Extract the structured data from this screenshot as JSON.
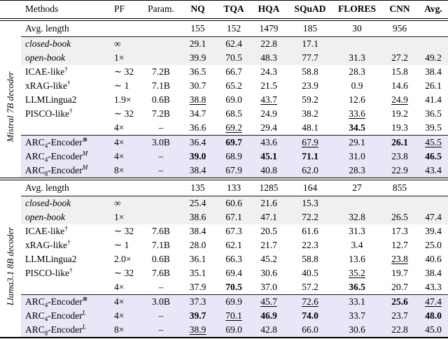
{
  "table": {
    "colors": {
      "gray_band": "#f0f0f0",
      "lavender_band": "#e7e7f7",
      "rule": "#000000"
    },
    "columns": [
      {
        "label": "Methods",
        "bold": false
      },
      {
        "label": "PF",
        "bold": false
      },
      {
        "label": "Param.",
        "bold": false
      },
      {
        "label": "NQ",
        "bold": true
      },
      {
        "label": "TQA",
        "bold": true
      },
      {
        "label": "HQA",
        "bold": true
      },
      {
        "label": "SQuAD",
        "bold": true
      },
      {
        "label": "FLORES",
        "bold": true
      },
      {
        "label": "CNN",
        "bold": true
      },
      {
        "label": "Avg.",
        "bold": true
      }
    ],
    "sections": [
      {
        "side_label": "Mistral 7B decoder",
        "avg_length_label": "Avg. length",
        "avg_length": [
          "155",
          "152",
          "1479",
          "185",
          "30",
          "956"
        ],
        "groups": [
          {
            "band": "gray_band",
            "rows": [
              {
                "method": {
                  "parts": [
                    {
                      "t": "closed-book",
                      "i": true
                    }
                  ]
                },
                "pf": "∞",
                "param": "",
                "cells": [
                  "29.1",
                  "62.4",
                  "22.8",
                  "17.1",
                  "",
                  "",
                  ""
                ]
              },
              {
                "method": {
                  "parts": [
                    {
                      "t": "open-book",
                      "i": true
                    }
                  ]
                },
                "pf": "1×",
                "param": "",
                "cells": [
                  "39.9",
                  "70.5",
                  "48.3",
                  "77.7",
                  "31.3",
                  "27.2",
                  "49.2"
                ]
              }
            ]
          },
          {
            "band": null,
            "rows": [
              {
                "method": {
                  "parts": [
                    {
                      "t": "ICAE-like"
                    },
                    {
                      "t": "†",
                      "sup": true
                    }
                  ]
                },
                "pf": "∼ 32",
                "param": "7.2B",
                "cells": [
                  "36.5",
                  "66.7",
                  "24.3",
                  "58.8",
                  "28.3",
                  "15.8",
                  "38.4"
                ]
              },
              {
                "method": {
                  "parts": [
                    {
                      "t": "xRAG-like"
                    },
                    {
                      "t": "†",
                      "sup": true
                    }
                  ]
                },
                "pf": "∼ 1",
                "param": "7.1B",
                "cells": [
                  "30.7",
                  "65.2",
                  "21.5",
                  "23.9",
                  "0.9",
                  "14.6",
                  "26.1"
                ]
              },
              {
                "method": {
                  "parts": [
                    {
                      "t": "LLMLingua2"
                    }
                  ]
                },
                "pf": "1.9×",
                "param": "0.6B",
                "cells": [
                  {
                    "t": "38.8",
                    "u": true
                  },
                  "69.0",
                  {
                    "t": "43.7",
                    "u": true
                  },
                  "59.2",
                  "12.6",
                  {
                    "t": "24.9",
                    "u": true
                  },
                  "41.4"
                ]
              },
              {
                "method": {
                  "parts": [
                    {
                      "t": "PISCO-like"
                    },
                    {
                      "t": "†",
                      "sup": true
                    }
                  ]
                },
                "pf": "∼ 32",
                "param": "7.2B",
                "cells": [
                  "34.7",
                  "68.5",
                  "24.9",
                  "38.2",
                  {
                    "t": "33.6",
                    "u": true
                  },
                  "19.2",
                  "36.5"
                ]
              },
              {
                "method": {
                  "parts": []
                },
                "pf": "4×",
                "param": "–",
                "cells": [
                  "36.6",
                  {
                    "t": "69.2",
                    "u": true
                  },
                  "29.4",
                  "48.1",
                  {
                    "t": "34.5",
                    "b": true
                  },
                  "19.3",
                  "39.5"
                ]
              }
            ]
          },
          {
            "band": "lavender_band",
            "rule_above": true,
            "rows": [
              {
                "method": {
                  "parts": [
                    {
                      "t": "ARC"
                    },
                    {
                      "t": "4",
                      "sub": true
                    },
                    {
                      "t": "-Encoder"
                    },
                    {
                      "t": "⊗",
                      "sup": true
                    }
                  ]
                },
                "pf": "4×",
                "param": "3.0B",
                "cells": [
                  "36.4",
                  {
                    "t": "69.7",
                    "b": true
                  },
                  "43.6",
                  {
                    "t": "67.9",
                    "u": true
                  },
                  "29.1",
                  {
                    "t": "26.1",
                    "b": true
                  },
                  {
                    "t": "45.5",
                    "u": true
                  }
                ]
              },
              {
                "method": {
                  "parts": [
                    {
                      "t": "ARC"
                    },
                    {
                      "t": "4",
                      "sub": true
                    },
                    {
                      "t": "-Encoder"
                    },
                    {
                      "t": "M",
                      "sup": true,
                      "i": true
                    }
                  ]
                },
                "pf": "4×",
                "param": "–",
                "cells": [
                  {
                    "t": "39.0",
                    "b": true
                  },
                  "68.9",
                  {
                    "t": "45.1",
                    "b": true
                  },
                  {
                    "t": "71.1",
                    "b": true
                  },
                  "31.0",
                  "23.8",
                  {
                    "t": "46.5",
                    "b": true
                  }
                ]
              },
              {
                "method": {
                  "parts": [
                    {
                      "t": "ARC"
                    },
                    {
                      "t": "8",
                      "sub": true
                    },
                    {
                      "t": "-Encoder"
                    },
                    {
                      "t": "M",
                      "sup": true,
                      "i": true
                    }
                  ]
                },
                "pf": "8×",
                "param": "–",
                "cells": [
                  "38.4",
                  "67.9",
                  "40.8",
                  "62.0",
                  "28.3",
                  "22.9",
                  "43.4"
                ]
              }
            ]
          }
        ]
      },
      {
        "side_label": "Llama3.1 8B decoder",
        "avg_length_label": "Avg. length",
        "avg_length": [
          "135",
          "133",
          "1285",
          "164",
          "27",
          "855"
        ],
        "groups": [
          {
            "band": "gray_band",
            "rows": [
              {
                "method": {
                  "parts": [
                    {
                      "t": "closed-book",
                      "i": true
                    }
                  ]
                },
                "pf": "∞",
                "param": "",
                "cells": [
                  "25.4",
                  "60.6",
                  "21.6",
                  "15.3",
                  "",
                  "",
                  ""
                ]
              },
              {
                "method": {
                  "parts": [
                    {
                      "t": "open-book",
                      "i": true
                    }
                  ]
                },
                "pf": "1×",
                "param": "",
                "cells": [
                  "38.6",
                  "67.1",
                  "47.1",
                  "72.2",
                  "32.8",
                  "26.5",
                  "47.4"
                ]
              }
            ]
          },
          {
            "band": null,
            "rows": [
              {
                "method": {
                  "parts": [
                    {
                      "t": "ICAE-like"
                    },
                    {
                      "t": "†",
                      "sup": true
                    }
                  ]
                },
                "pf": "∼ 32",
                "param": "7.6B",
                "cells": [
                  "38.4",
                  "67.3",
                  "20.5",
                  "61.6",
                  "31.3",
                  "17.3",
                  "39.4"
                ]
              },
              {
                "method": {
                  "parts": [
                    {
                      "t": "xRAG-like"
                    },
                    {
                      "t": "†",
                      "sup": true
                    }
                  ]
                },
                "pf": "∼ 1",
                "param": "7.1B",
                "cells": [
                  "28.0",
                  "62.1",
                  "21.7",
                  "22.3",
                  "3.4",
                  "12.7",
                  "25.0"
                ]
              },
              {
                "method": {
                  "parts": [
                    {
                      "t": "LLMLingua2"
                    }
                  ]
                },
                "pf": "2.0×",
                "param": "0.6B",
                "cells": [
                  "36.1",
                  "66.3",
                  "45.2",
                  "58.8",
                  "13.6",
                  {
                    "t": "23.8",
                    "u": true
                  },
                  "40.6"
                ]
              },
              {
                "method": {
                  "parts": [
                    {
                      "t": "PISCO-like"
                    },
                    {
                      "t": "†",
                      "sup": true
                    }
                  ]
                },
                "pf": "∼ 32",
                "param": "7.6B",
                "cells": [
                  "35.1",
                  "69.4",
                  "30.6",
                  "40.5",
                  {
                    "t": "35.2",
                    "u": true
                  },
                  "19.7",
                  "38.4"
                ]
              },
              {
                "method": {
                  "parts": []
                },
                "pf": "4×",
                "param": "–",
                "cells": [
                  "37.9",
                  {
                    "t": "70.5",
                    "b": true
                  },
                  "37.0",
                  "57.2",
                  {
                    "t": "36.5",
                    "b": true
                  },
                  "20.7",
                  "43.3"
                ]
              }
            ]
          },
          {
            "band": "lavender_band",
            "rule_above": true,
            "rows": [
              {
                "method": {
                  "parts": [
                    {
                      "t": "ARC"
                    },
                    {
                      "t": "4",
                      "sub": true
                    },
                    {
                      "t": "-Encoder"
                    },
                    {
                      "t": "⊗",
                      "sup": true
                    }
                  ]
                },
                "pf": "4×",
                "param": "3.0B",
                "cells": [
                  "37.3",
                  "69.9",
                  {
                    "t": "45.7",
                    "u": true
                  },
                  {
                    "t": "72.6",
                    "u": true
                  },
                  "33.1",
                  {
                    "t": "25.6",
                    "b": true
                  },
                  {
                    "t": "47.4",
                    "u": true
                  }
                ]
              },
              {
                "method": {
                  "parts": [
                    {
                      "t": "ARC"
                    },
                    {
                      "t": "4",
                      "sub": true
                    },
                    {
                      "t": "-Encoder"
                    },
                    {
                      "t": "L",
                      "sup": true,
                      "i": true
                    }
                  ]
                },
                "pf": "4×",
                "param": "–",
                "cells": [
                  {
                    "t": "39.7",
                    "b": true
                  },
                  {
                    "t": "70.1",
                    "u": true
                  },
                  {
                    "t": "46.9",
                    "b": true
                  },
                  {
                    "t": "74.0",
                    "b": true
                  },
                  "33.7",
                  "23.7",
                  {
                    "t": "48.0",
                    "b": true
                  }
                ]
              },
              {
                "method": {
                  "parts": [
                    {
                      "t": "ARC"
                    },
                    {
                      "t": "8",
                      "sub": true
                    },
                    {
                      "t": "-Encoder"
                    },
                    {
                      "t": "L",
                      "sup": true,
                      "i": true
                    }
                  ]
                },
                "pf": "8×",
                "param": "–",
                "cells": [
                  {
                    "t": "38.9",
                    "u": true
                  },
                  "69.0",
                  "42.8",
                  "66.0",
                  "30.6",
                  "22.8",
                  "45.0"
                ]
              }
            ]
          }
        ]
      }
    ]
  }
}
